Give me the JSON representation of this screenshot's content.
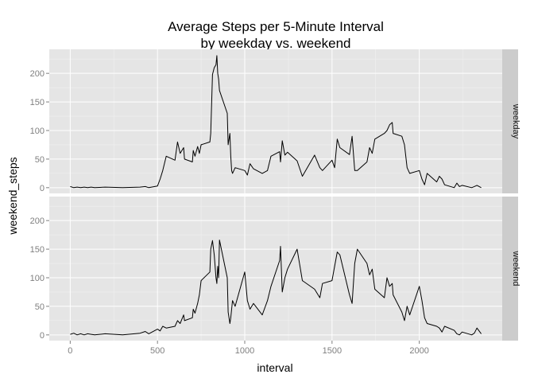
{
  "chart_data": {
    "type": "line",
    "title": "Average Steps per 5-Minute Interval",
    "subtitle": "by weekday vs. weekend",
    "xlabel": "interval",
    "ylabel": "weekend_steps",
    "xlim": [
      -120,
      2475
    ],
    "ylim": [
      -10,
      242
    ],
    "x_ticks": [
      0,
      500,
      1000,
      1500,
      2000
    ],
    "x_tick_labels": [
      "0",
      "500",
      "1000",
      "1500",
      "2000"
    ],
    "y_ticks": [
      0,
      50,
      100,
      150,
      200
    ],
    "y_tick_labels": [
      "0",
      "50",
      "100",
      "150",
      "200"
    ],
    "grid": true,
    "legend": "none",
    "panel_background": "#e5e5e5",
    "strip_background": "#cccccc",
    "grid_color": "#f2f2f2",
    "line_color": "#000000",
    "panels": [
      {
        "name": "weekday",
        "x": [
          0,
          20,
          40,
          60,
          80,
          100,
          120,
          140,
          200,
          300,
          400,
          430,
          450,
          500,
          515,
          530,
          550,
          600,
          615,
          630,
          650,
          655,
          700,
          705,
          715,
          730,
          740,
          750,
          800,
          805,
          815,
          825,
          835,
          840,
          845,
          850,
          855,
          900,
          905,
          915,
          920,
          925,
          930,
          945,
          1000,
          1015,
          1030,
          1050,
          1100,
          1130,
          1150,
          1200,
          1205,
          1215,
          1230,
          1245,
          1300,
          1330,
          1400,
          1430,
          1445,
          1500,
          1515,
          1530,
          1545,
          1600,
          1615,
          1630,
          1645,
          1700,
          1715,
          1730,
          1745,
          1800,
          1815,
          1830,
          1845,
          1850,
          1900,
          1915,
          1930,
          1945,
          2000,
          2015,
          2030,
          2045,
          2100,
          2115,
          2130,
          2145,
          2200,
          2215,
          2230,
          2245,
          2300,
          2315,
          2330,
          2355
        ],
        "y": [
          2,
          0,
          1,
          0,
          1,
          0,
          1,
          0,
          1,
          0,
          1,
          2,
          0,
          3,
          15,
          30,
          55,
          48,
          80,
          60,
          70,
          50,
          45,
          65,
          55,
          72,
          60,
          75,
          80,
          95,
          198,
          210,
          215,
          231,
          200,
          190,
          170,
          130,
          75,
          95,
          55,
          30,
          25,
          35,
          30,
          22,
          42,
          33,
          25,
          30,
          55,
          63,
          45,
          82,
          57,
          62,
          47,
          20,
          57,
          35,
          30,
          48,
          35,
          85,
          70,
          58,
          90,
          30,
          30,
          45,
          70,
          60,
          85,
          95,
          100,
          110,
          114,
          95,
          90,
          75,
          35,
          25,
          30,
          15,
          5,
          25,
          10,
          20,
          15,
          5,
          0,
          8,
          2,
          4,
          0,
          2,
          4,
          0
        ]
      },
      {
        "name": "weekend",
        "x": [
          0,
          20,
          40,
          60,
          80,
          100,
          120,
          140,
          200,
          300,
          400,
          430,
          450,
          500,
          515,
          530,
          550,
          600,
          615,
          630,
          650,
          655,
          700,
          705,
          715,
          730,
          740,
          750,
          800,
          805,
          815,
          825,
          835,
          840,
          845,
          850,
          855,
          900,
          905,
          915,
          920,
          925,
          930,
          945,
          1000,
          1015,
          1030,
          1050,
          1100,
          1130,
          1150,
          1200,
          1205,
          1215,
          1230,
          1245,
          1300,
          1330,
          1400,
          1430,
          1445,
          1500,
          1515,
          1530,
          1545,
          1600,
          1615,
          1630,
          1645,
          1700,
          1715,
          1730,
          1745,
          1800,
          1815,
          1830,
          1845,
          1850,
          1900,
          1915,
          1930,
          1945,
          2000,
          2015,
          2030,
          2045,
          2100,
          2115,
          2130,
          2145,
          2200,
          2215,
          2230,
          2245,
          2300,
          2315,
          2330,
          2355
        ],
        "y": [
          1,
          3,
          0,
          2,
          0,
          2,
          1,
          0,
          2,
          0,
          3,
          6,
          2,
          10,
          7,
          15,
          12,
          15,
          25,
          20,
          35,
          25,
          30,
          45,
          38,
          55,
          70,
          95,
          110,
          150,
          165,
          140,
          100,
          90,
          120,
          100,
          166,
          100,
          40,
          20,
          30,
          45,
          60,
          50,
          110,
          60,
          45,
          55,
          35,
          60,
          85,
          130,
          155,
          75,
          100,
          115,
          150,
          95,
          80,
          65,
          90,
          95,
          120,
          145,
          140,
          70,
          55,
          125,
          150,
          125,
          105,
          115,
          80,
          65,
          100,
          85,
          90,
          70,
          40,
          25,
          50,
          35,
          85,
          60,
          30,
          20,
          15,
          12,
          5,
          15,
          8,
          2,
          0,
          5,
          0,
          3,
          12,
          2
        ]
      }
    ]
  }
}
